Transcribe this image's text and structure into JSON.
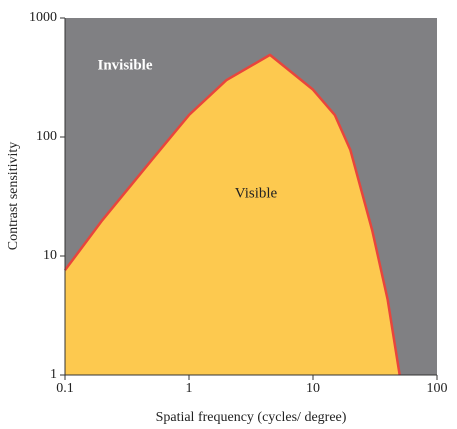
{
  "chart_data": {
    "type": "area",
    "x_label": "Spatial frequency (cycles/ degree)",
    "y_label": "Contrast sensitivity",
    "annotations": [
      "Invisible",
      "Visible"
    ],
    "x": [
      0.1,
      0.2,
      0.5,
      1,
      2,
      4.5,
      10,
      15,
      20,
      30,
      40,
      50
    ],
    "values": [
      7.6,
      20,
      64,
      153,
      300,
      490,
      250,
      153,
      78,
      16.5,
      4.3,
      1
    ],
    "xlim": [
      0.1,
      100
    ],
    "ylim": [
      1,
      1000
    ],
    "xticks": [
      0.1,
      1,
      10,
      100
    ],
    "yticks": [
      1,
      10,
      100,
      1000
    ],
    "x_log": true,
    "y_log": true,
    "color": "#fdc94f",
    "line_color": "#e8453c",
    "background_color": "#808083"
  }
}
